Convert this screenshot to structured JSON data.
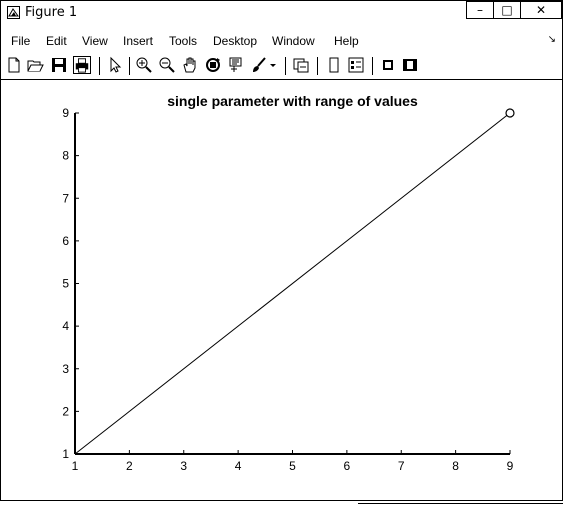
{
  "window": {
    "title": "Figure 1",
    "controls": {
      "minimize": "–",
      "maximize": "□",
      "close": "✕"
    }
  },
  "menubar": {
    "items": [
      "File",
      "Edit",
      "View",
      "Insert",
      "Tools",
      "Desktop",
      "Window",
      "Help"
    ],
    "overflow": "↘"
  },
  "toolbar": {
    "icons": [
      "new-figure-icon",
      "open-file-icon",
      "save-icon",
      "print-icon",
      "pointer-icon",
      "zoom-in-icon",
      "zoom-out-icon",
      "pan-icon",
      "rotate-3d-icon",
      "data-cursor-icon",
      "brush-icon",
      "brush-dropdown-icon",
      "link-plot-icon",
      "insert-colorbar-icon",
      "insert-legend-icon",
      "hide-plot-tools-icon",
      "show-plot-tools-icon"
    ]
  },
  "chart_data": {
    "type": "line",
    "title": "single parameter with range of values",
    "xlabel": "",
    "ylabel": "",
    "x": [
      1,
      9
    ],
    "series": [
      {
        "values": [
          1,
          9
        ],
        "color": "#000000",
        "end_marker": "circle"
      }
    ],
    "xlim": [
      1,
      9
    ],
    "ylim": [
      1,
      9
    ],
    "xticks": [
      "1",
      "2",
      "3",
      "4",
      "5",
      "6",
      "7",
      "8",
      "9"
    ],
    "yticks": [
      "1",
      "2",
      "3",
      "4",
      "5",
      "6",
      "7",
      "8",
      "9"
    ],
    "grid": false
  }
}
